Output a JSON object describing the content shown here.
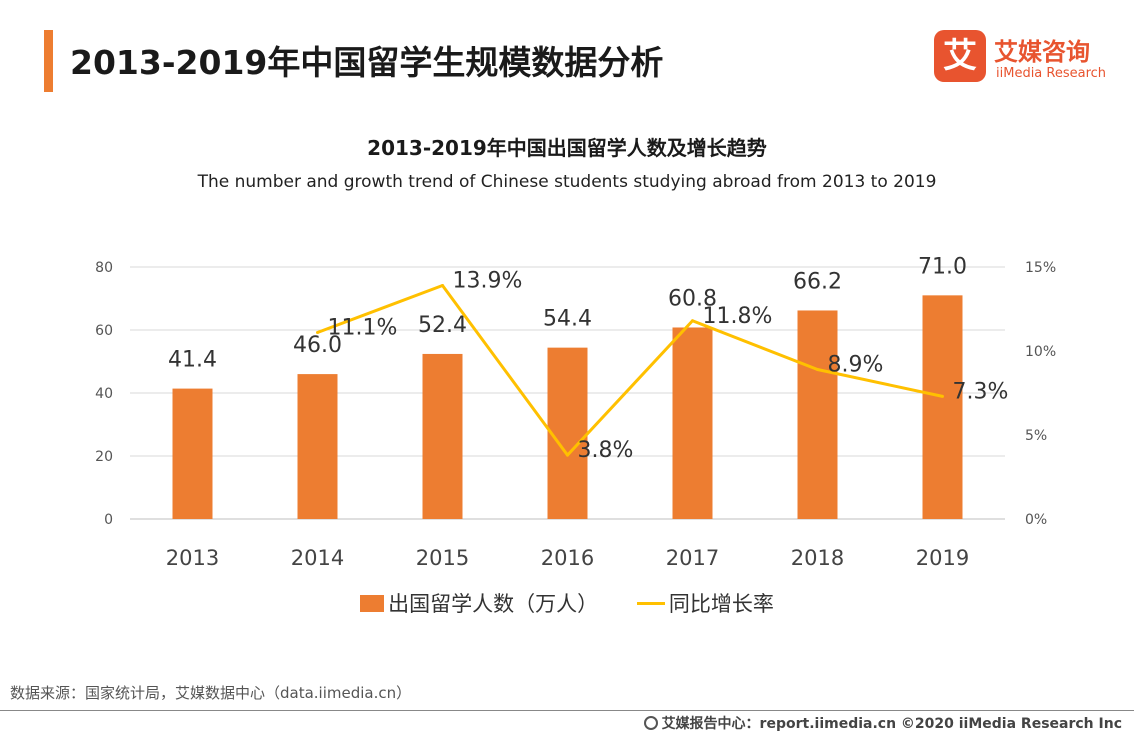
{
  "header": {
    "title": "2013-2019年中国留学生规模数据分析",
    "logo_mark": "艾",
    "logo_cn": "艾媒咨询",
    "logo_en": "iiMedia Research"
  },
  "colors": {
    "accent": "#ED7D31",
    "bar": "#ED7D31",
    "line": "#FFC000",
    "logo": "#E8542F"
  },
  "chart_data": {
    "type": "bar",
    "title": "2013-2019年中国出国留学人数及增长趋势",
    "subtitle": "The number and growth trend of Chinese students studying abroad from 2013 to 2019",
    "categories": [
      "2013",
      "2014",
      "2015",
      "2016",
      "2017",
      "2018",
      "2019"
    ],
    "series": [
      {
        "name": "出国留学人数（万人）",
        "type": "bar",
        "axis": "left",
        "values": [
          41.4,
          46.0,
          52.4,
          54.4,
          60.8,
          66.2,
          71.0
        ],
        "labels": [
          "41.4",
          "46.0",
          "52.4",
          "54.4",
          "60.8",
          "66.2",
          "71.0"
        ]
      },
      {
        "name": "同比增长率",
        "type": "line",
        "axis": "right",
        "values": [
          null,
          11.1,
          13.9,
          3.8,
          11.8,
          8.9,
          7.3
        ],
        "labels": [
          "",
          "11.1%",
          "13.9%",
          "3.8%",
          "11.8%",
          "8.9%",
          "7.3%"
        ]
      }
    ],
    "y_left": {
      "min": 0,
      "max": 80,
      "ticks": [
        "0",
        "20",
        "40",
        "60",
        "80"
      ]
    },
    "y_right": {
      "min": 0,
      "max": 15,
      "ticks": [
        "0%",
        "5%",
        "10%",
        "15%"
      ]
    },
    "grid": true,
    "legend_position": "bottom"
  },
  "source": "数据来源：国家统计局，艾媒数据中心（data.iimedia.cn）",
  "footer": "艾媒报告中心：report.iimedia.cn   ©2020  iiMedia Research  Inc"
}
